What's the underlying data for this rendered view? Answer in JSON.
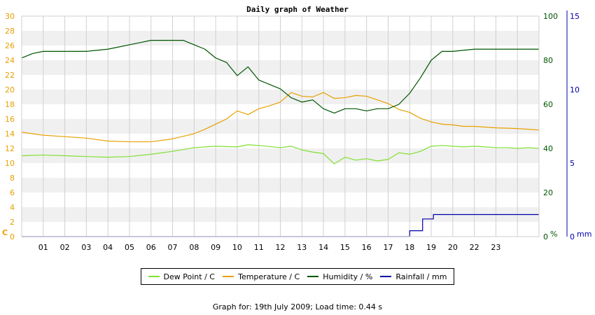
{
  "chart_data": {
    "type": "line",
    "title": "Daily graph of Weather",
    "footer": "Graph for: 19th July 2009; Load time: 0.44 s",
    "x_tick_labels": [
      "01",
      "02",
      "03",
      "04",
      "05",
      "06",
      "07",
      "08",
      "09",
      "10",
      "11",
      "12",
      "13",
      "14",
      "15",
      "16",
      "17",
      "18",
      "19",
      "20",
      "22",
      "23"
    ],
    "left_axis": {
      "label": "C",
      "ticks": [
        0,
        2,
        4,
        6,
        8,
        10,
        12,
        14,
        16,
        18,
        20,
        22,
        24,
        26,
        28,
        30
      ],
      "ylim": [
        0,
        30
      ],
      "color": "#e8a000"
    },
    "humidity_axis": {
      "label": "%",
      "ticks": [
        0,
        20,
        40,
        60,
        80,
        100
      ],
      "ylim": [
        0,
        100
      ],
      "color": "#005500"
    },
    "rain_axis": {
      "label": "mm",
      "ticks": [
        0,
        5,
        10,
        15
      ],
      "ylim": [
        0,
        15
      ],
      "color": "#0000aa"
    },
    "grid": true,
    "legend_position": "bottom",
    "series": [
      {
        "name": "Dew Point / C",
        "color": "#80e030",
        "axis": "left",
        "x": [
          0,
          1,
          2,
          3,
          4,
          5,
          6,
          7,
          8,
          9,
          10,
          10.5,
          11,
          12,
          12.5,
          13,
          13.5,
          14,
          14.5,
          15,
          15.5,
          16,
          16.5,
          17,
          17.5,
          18,
          18.5,
          19,
          19.5,
          20,
          20.5,
          21,
          21.5,
          22,
          22.5,
          23,
          23.5,
          24
        ],
        "y": [
          11.0,
          11.1,
          11.0,
          10.9,
          10.8,
          10.9,
          11.2,
          11.6,
          12.1,
          12.3,
          12.2,
          12.5,
          12.4,
          12.1,
          12.3,
          11.8,
          11.5,
          11.3,
          9.9,
          10.8,
          10.4,
          10.6,
          10.3,
          10.5,
          11.4,
          11.2,
          11.6,
          12.3,
          12.4,
          12.3,
          12.2,
          12.3,
          12.2,
          12.1,
          12.1,
          12.0,
          12.1,
          12.0
        ]
      },
      {
        "name": "Temperature / C",
        "color": "#e8a000",
        "axis": "left",
        "x": [
          0,
          1,
          2,
          3,
          4,
          5,
          6,
          7,
          8,
          8.5,
          9,
          9.5,
          10,
          10.5,
          11,
          11.5,
          12,
          12.5,
          13,
          13.5,
          14,
          14.5,
          15,
          15.5,
          16,
          16.5,
          17,
          17.5,
          18,
          18.5,
          19,
          19.5,
          20,
          20.5,
          21,
          22,
          23,
          24
        ],
        "y": [
          14.2,
          13.8,
          13.6,
          13.4,
          13.0,
          12.9,
          12.9,
          13.3,
          14.0,
          14.6,
          15.3,
          16.0,
          17.1,
          16.6,
          17.4,
          17.8,
          18.3,
          19.6,
          19.1,
          19.0,
          19.6,
          18.8,
          18.9,
          19.2,
          19.1,
          18.6,
          18.1,
          17.3,
          16.9,
          16.1,
          15.6,
          15.3,
          15.2,
          15.0,
          15.0,
          14.8,
          14.7,
          14.5
        ]
      },
      {
        "name": "Humidity / %",
        "color": "#005500",
        "axis": "humidity",
        "x": [
          0,
          0.5,
          1,
          1.5,
          2,
          3,
          4,
          4.5,
          5,
          5.5,
          6,
          6.5,
          7,
          7.5,
          8,
          8.5,
          9,
          9.5,
          10,
          10.5,
          11,
          11.5,
          12,
          12.5,
          13,
          13.5,
          14,
          14.5,
          15,
          15.5,
          16,
          16.5,
          17,
          17.5,
          18,
          18.5,
          19,
          19.5,
          20,
          21,
          22,
          23,
          24
        ],
        "y": [
          81,
          83,
          84,
          84,
          84,
          84,
          85,
          86,
          87,
          88,
          89,
          89,
          89,
          89,
          87,
          85,
          81,
          79,
          73,
          77,
          71,
          69,
          67,
          63,
          61,
          62,
          58,
          56,
          58,
          58,
          57,
          58,
          58,
          60,
          65,
          72,
          80,
          84,
          84,
          85,
          85,
          85,
          85
        ]
      },
      {
        "name": "Rainfall / mm",
        "color": "#0000aa",
        "axis": "rain",
        "step": true,
        "x": [
          0,
          18.0,
          18.6,
          19.1,
          24
        ],
        "y": [
          0,
          0.4,
          1.2,
          1.5,
          1.5
        ]
      }
    ]
  }
}
